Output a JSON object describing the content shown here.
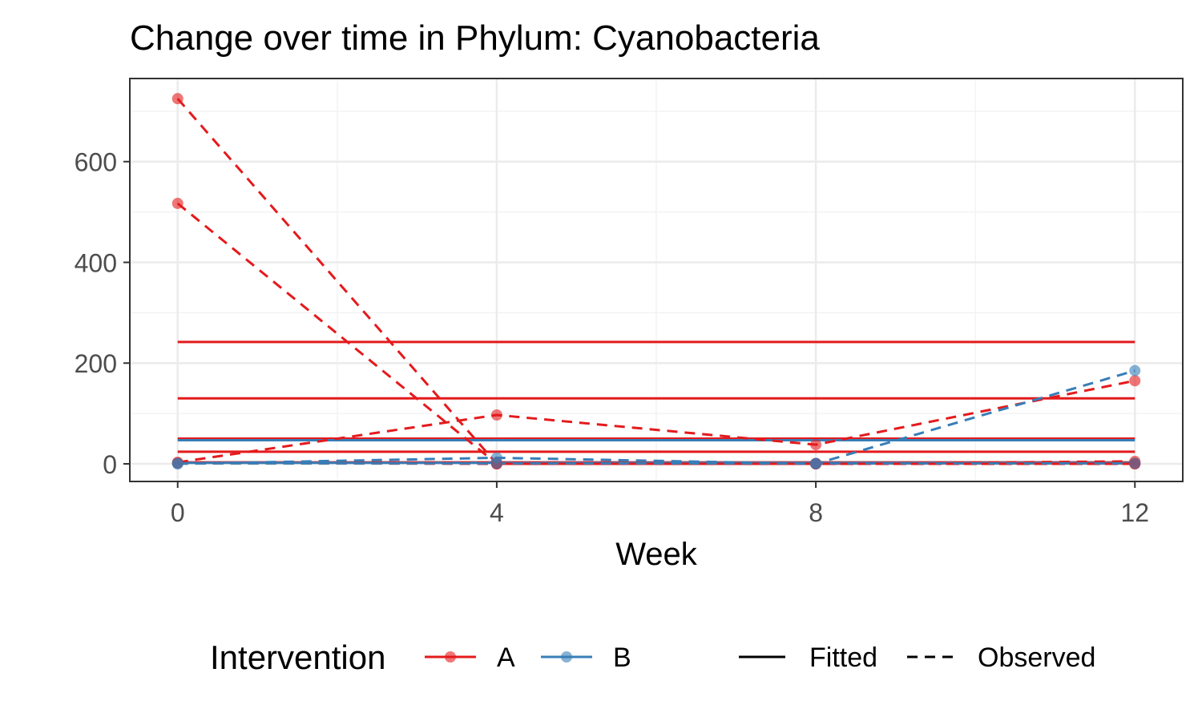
{
  "chart_data": {
    "type": "line",
    "title": "Change over time in Phylum: Cyanobacteria",
    "xlabel": "Week",
    "ylabel": "",
    "x_ticks": [
      0,
      4,
      8,
      12
    ],
    "y_ticks": [
      0,
      200,
      400,
      600
    ],
    "xlim": [
      -0.6,
      12.6
    ],
    "ylim": [
      -35,
      765
    ],
    "grid": true,
    "legend": {
      "position": "bottom",
      "color_title": "Intervention",
      "color_entries": [
        {
          "label": "A",
          "color": "#e41a1c"
        },
        {
          "label": "B",
          "color": "#377eb8"
        }
      ],
      "linetype_entries": [
        {
          "label": "Fitted",
          "dash": "solid"
        },
        {
          "label": "Observed",
          "dash": "dashed"
        }
      ]
    },
    "observed": [
      {
        "group": "A",
        "x": [
          0,
          4,
          8,
          12
        ],
        "y": [
          725,
          0,
          0,
          0
        ]
      },
      {
        "group": "A",
        "x": [
          0,
          4,
          8,
          12
        ],
        "y": [
          517,
          0,
          0,
          0
        ]
      },
      {
        "group": "A",
        "x": [
          0,
          4,
          8,
          12
        ],
        "y": [
          3,
          97,
          38,
          165
        ]
      },
      {
        "group": "A",
        "x": [
          0,
          4,
          8,
          12
        ],
        "y": [
          2,
          0,
          0,
          5
        ]
      },
      {
        "group": "A",
        "x": [
          0,
          4,
          8,
          12
        ],
        "y": [
          1,
          2,
          1,
          1
        ]
      },
      {
        "group": "B",
        "x": [
          0,
          4,
          8,
          12
        ],
        "y": [
          0,
          12,
          0,
          185
        ]
      },
      {
        "group": "B",
        "x": [
          0,
          4,
          8,
          12
        ],
        "y": [
          1,
          1,
          1,
          1
        ]
      }
    ],
    "fitted": [
      {
        "group": "A",
        "y": 242
      },
      {
        "group": "A",
        "y": 130
      },
      {
        "group": "A",
        "y": 50
      },
      {
        "group": "B",
        "y": 47
      },
      {
        "group": "A",
        "y": 24
      },
      {
        "group": "A",
        "y": 3
      },
      {
        "group": "B",
        "y": 2
      }
    ]
  }
}
